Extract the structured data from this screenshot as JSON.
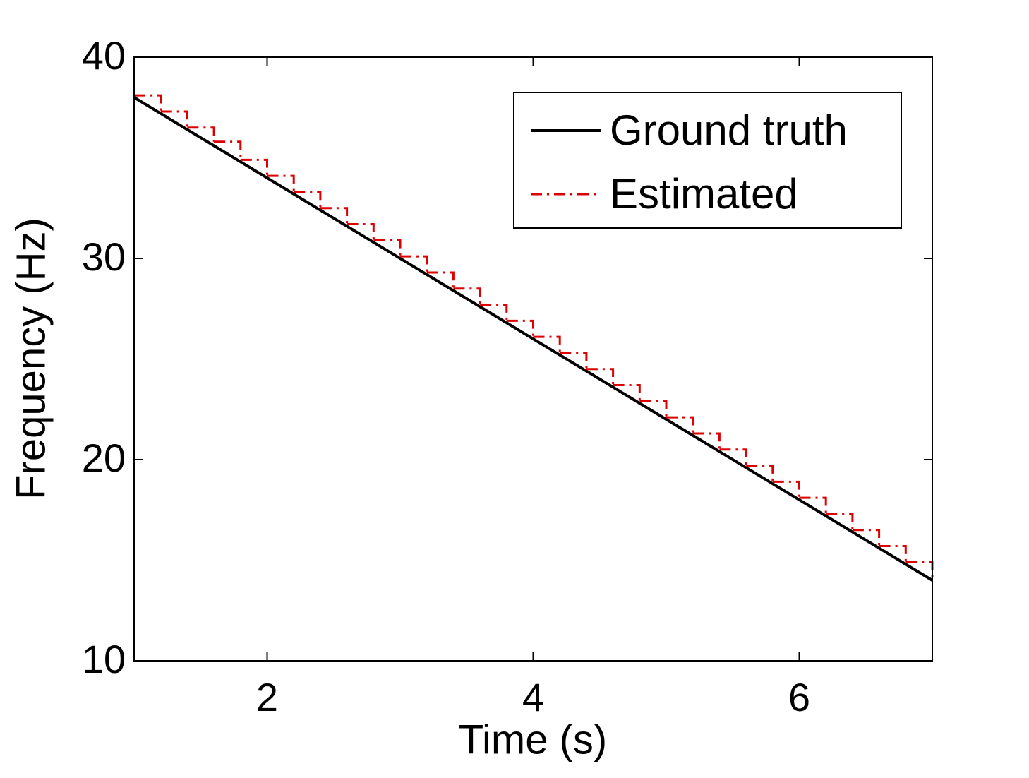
{
  "chart_data": {
    "type": "line",
    "xlabel": "Time (s)",
    "ylabel": "Frequency (Hz)",
    "xlim": [
      1,
      7
    ],
    "ylim": [
      10,
      40
    ],
    "xticks": [
      2,
      4,
      6
    ],
    "yticks": [
      10,
      20,
      30,
      40
    ],
    "legend": "upper right",
    "series": [
      {
        "name": "Ground truth",
        "color": "#000000",
        "style": "solid",
        "x": [
          1,
          7
        ],
        "values": [
          38,
          14
        ]
      },
      {
        "name": "Estimated",
        "color": "#dd0000",
        "style": "dashdot",
        "drawstyle": "steps-post",
        "x": [
          1.0,
          1.2,
          1.4,
          1.6,
          1.8,
          2.0,
          2.2,
          2.4,
          2.6,
          2.8,
          3.0,
          3.2,
          3.4,
          3.6,
          3.8,
          4.0,
          4.2,
          4.4,
          4.6,
          4.8,
          5.0,
          5.2,
          5.4,
          5.6,
          5.8,
          6.0,
          6.2,
          6.4,
          6.6,
          6.8,
          7.0
        ],
        "values": [
          38.1,
          37.3,
          36.5,
          35.8,
          34.9,
          34.1,
          33.3,
          32.5,
          31.7,
          30.9,
          30.1,
          29.3,
          28.5,
          27.7,
          26.9,
          26.1,
          25.3,
          24.5,
          23.7,
          22.9,
          22.1,
          21.3,
          20.5,
          19.7,
          18.9,
          18.1,
          17.3,
          16.5,
          15.7,
          14.9,
          14.1
        ]
      }
    ]
  }
}
